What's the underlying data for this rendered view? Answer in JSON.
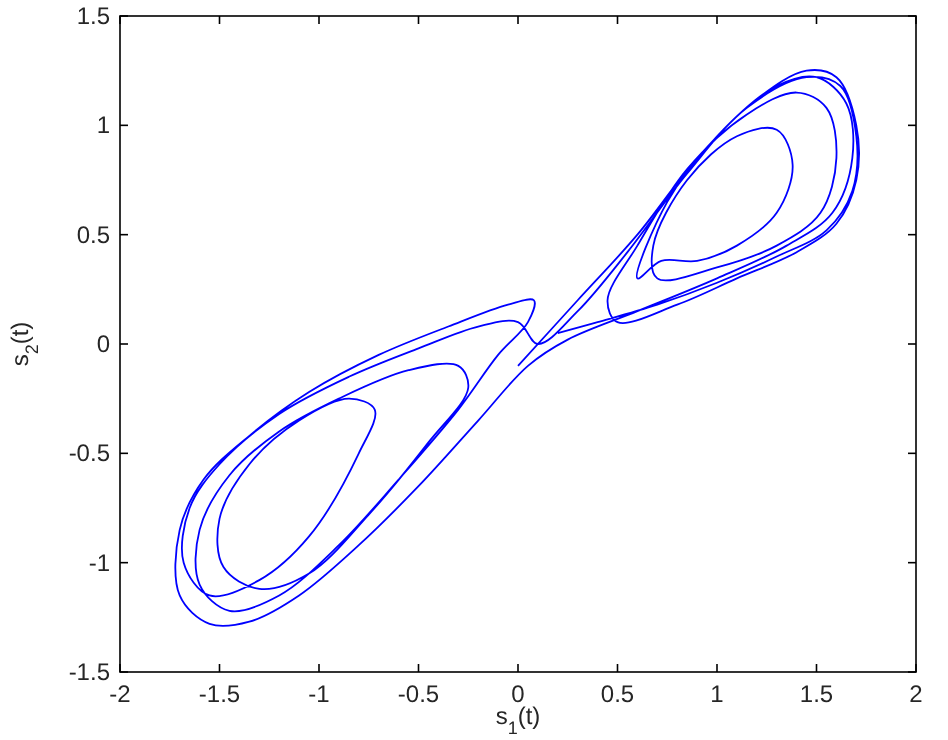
{
  "chart_data": {
    "type": "line",
    "xlabel": "s$_{1}$(t)",
    "ylabel": "s$_{2}$(t)",
    "xlim": [
      -2,
      2
    ],
    "ylim": [
      -1.5,
      1.5
    ],
    "xticks": [
      -2,
      -1.5,
      -1,
      -0.5,
      0,
      0.5,
      1,
      1.5,
      2
    ],
    "yticks": [
      -1.5,
      -1,
      -0.5,
      0,
      0.5,
      1,
      1.5
    ],
    "grid": false,
    "marker": "none",
    "line_style": "solid",
    "series": [
      {
        "color": "#0000ff",
        "x": [
          0.0,
          0.3,
          0.6,
          0.9,
          1.2,
          1.45,
          1.6,
          1.7,
          1.7,
          1.6,
          1.4,
          1.1,
          0.8,
          0.5,
          0.45,
          0.6,
          0.85,
          1.15,
          1.4,
          1.55,
          1.6,
          1.52,
          1.3,
          1.0,
          0.7,
          0.68,
          0.85,
          1.1,
          1.3,
          1.38,
          1.3,
          1.1,
          0.9,
          0.72,
          0.6,
          0.75,
          1.0,
          1.3,
          1.5,
          1.65,
          1.68,
          1.58,
          1.35,
          1.0,
          0.6,
          0.25,
          0.05,
          -0.2,
          -0.5,
          -0.8,
          -1.1,
          -1.35,
          -1.55,
          -1.7,
          -1.7,
          -1.58,
          -1.35,
          -1.05,
          -0.7,
          -0.35,
          -0.05,
          0.08,
          0.05,
          -0.1,
          -0.3,
          -0.6,
          -0.9,
          -1.2,
          -1.45,
          -1.6,
          -1.6,
          -1.45,
          -1.2,
          -0.9,
          -0.55,
          -0.3,
          -0.25,
          -0.45,
          -0.75,
          -1.05,
          -1.3,
          -1.48,
          -1.5,
          -1.35,
          -1.1,
          -0.85,
          -0.72,
          -0.8,
          -1.05,
          -1.3,
          -1.55,
          -1.68,
          -1.65,
          -1.5,
          -1.2,
          -0.85,
          -0.5,
          -0.2,
          0.0,
          0.1,
          0.3,
          0.55,
          0.85,
          1.15,
          1.45,
          1.62,
          1.7,
          1.68,
          1.55,
          1.3,
          1.0,
          0.7,
          0.4,
          0.2
        ],
        "values": [
          -0.1,
          0.2,
          0.5,
          0.85,
          1.12,
          1.25,
          1.22,
          1.0,
          0.75,
          0.55,
          0.42,
          0.3,
          0.18,
          0.1,
          0.2,
          0.45,
          0.8,
          1.05,
          1.15,
          1.08,
          0.85,
          0.6,
          0.45,
          0.35,
          0.3,
          0.45,
          0.75,
          0.95,
          0.98,
          0.82,
          0.6,
          0.45,
          0.38,
          0.38,
          0.3,
          0.65,
          0.95,
          1.18,
          1.22,
          1.1,
          0.85,
          0.6,
          0.45,
          0.3,
          0.15,
          0.02,
          -0.1,
          -0.35,
          -0.65,
          -0.92,
          -1.15,
          -1.27,
          -1.28,
          -1.15,
          -0.85,
          -0.62,
          -0.42,
          -0.22,
          -0.05,
          0.08,
          0.18,
          0.2,
          0.1,
          -0.05,
          -0.3,
          -0.62,
          -0.92,
          -1.15,
          -1.22,
          -1.1,
          -0.85,
          -0.6,
          -0.4,
          -0.25,
          -0.12,
          -0.1,
          -0.2,
          -0.45,
          -0.78,
          -1.05,
          -1.12,
          -1.02,
          -0.8,
          -0.55,
          -0.35,
          -0.25,
          -0.3,
          -0.5,
          -0.88,
          -1.08,
          -1.15,
          -1.0,
          -0.75,
          -0.55,
          -0.32,
          -0.15,
          -0.02,
          0.08,
          0.1,
          0.0,
          0.15,
          0.42,
          0.78,
          1.08,
          1.22,
          1.18,
          0.95,
          0.7,
          0.52,
          0.4,
          0.28,
          0.18,
          0.1,
          0.05
        ]
      }
    ]
  }
}
